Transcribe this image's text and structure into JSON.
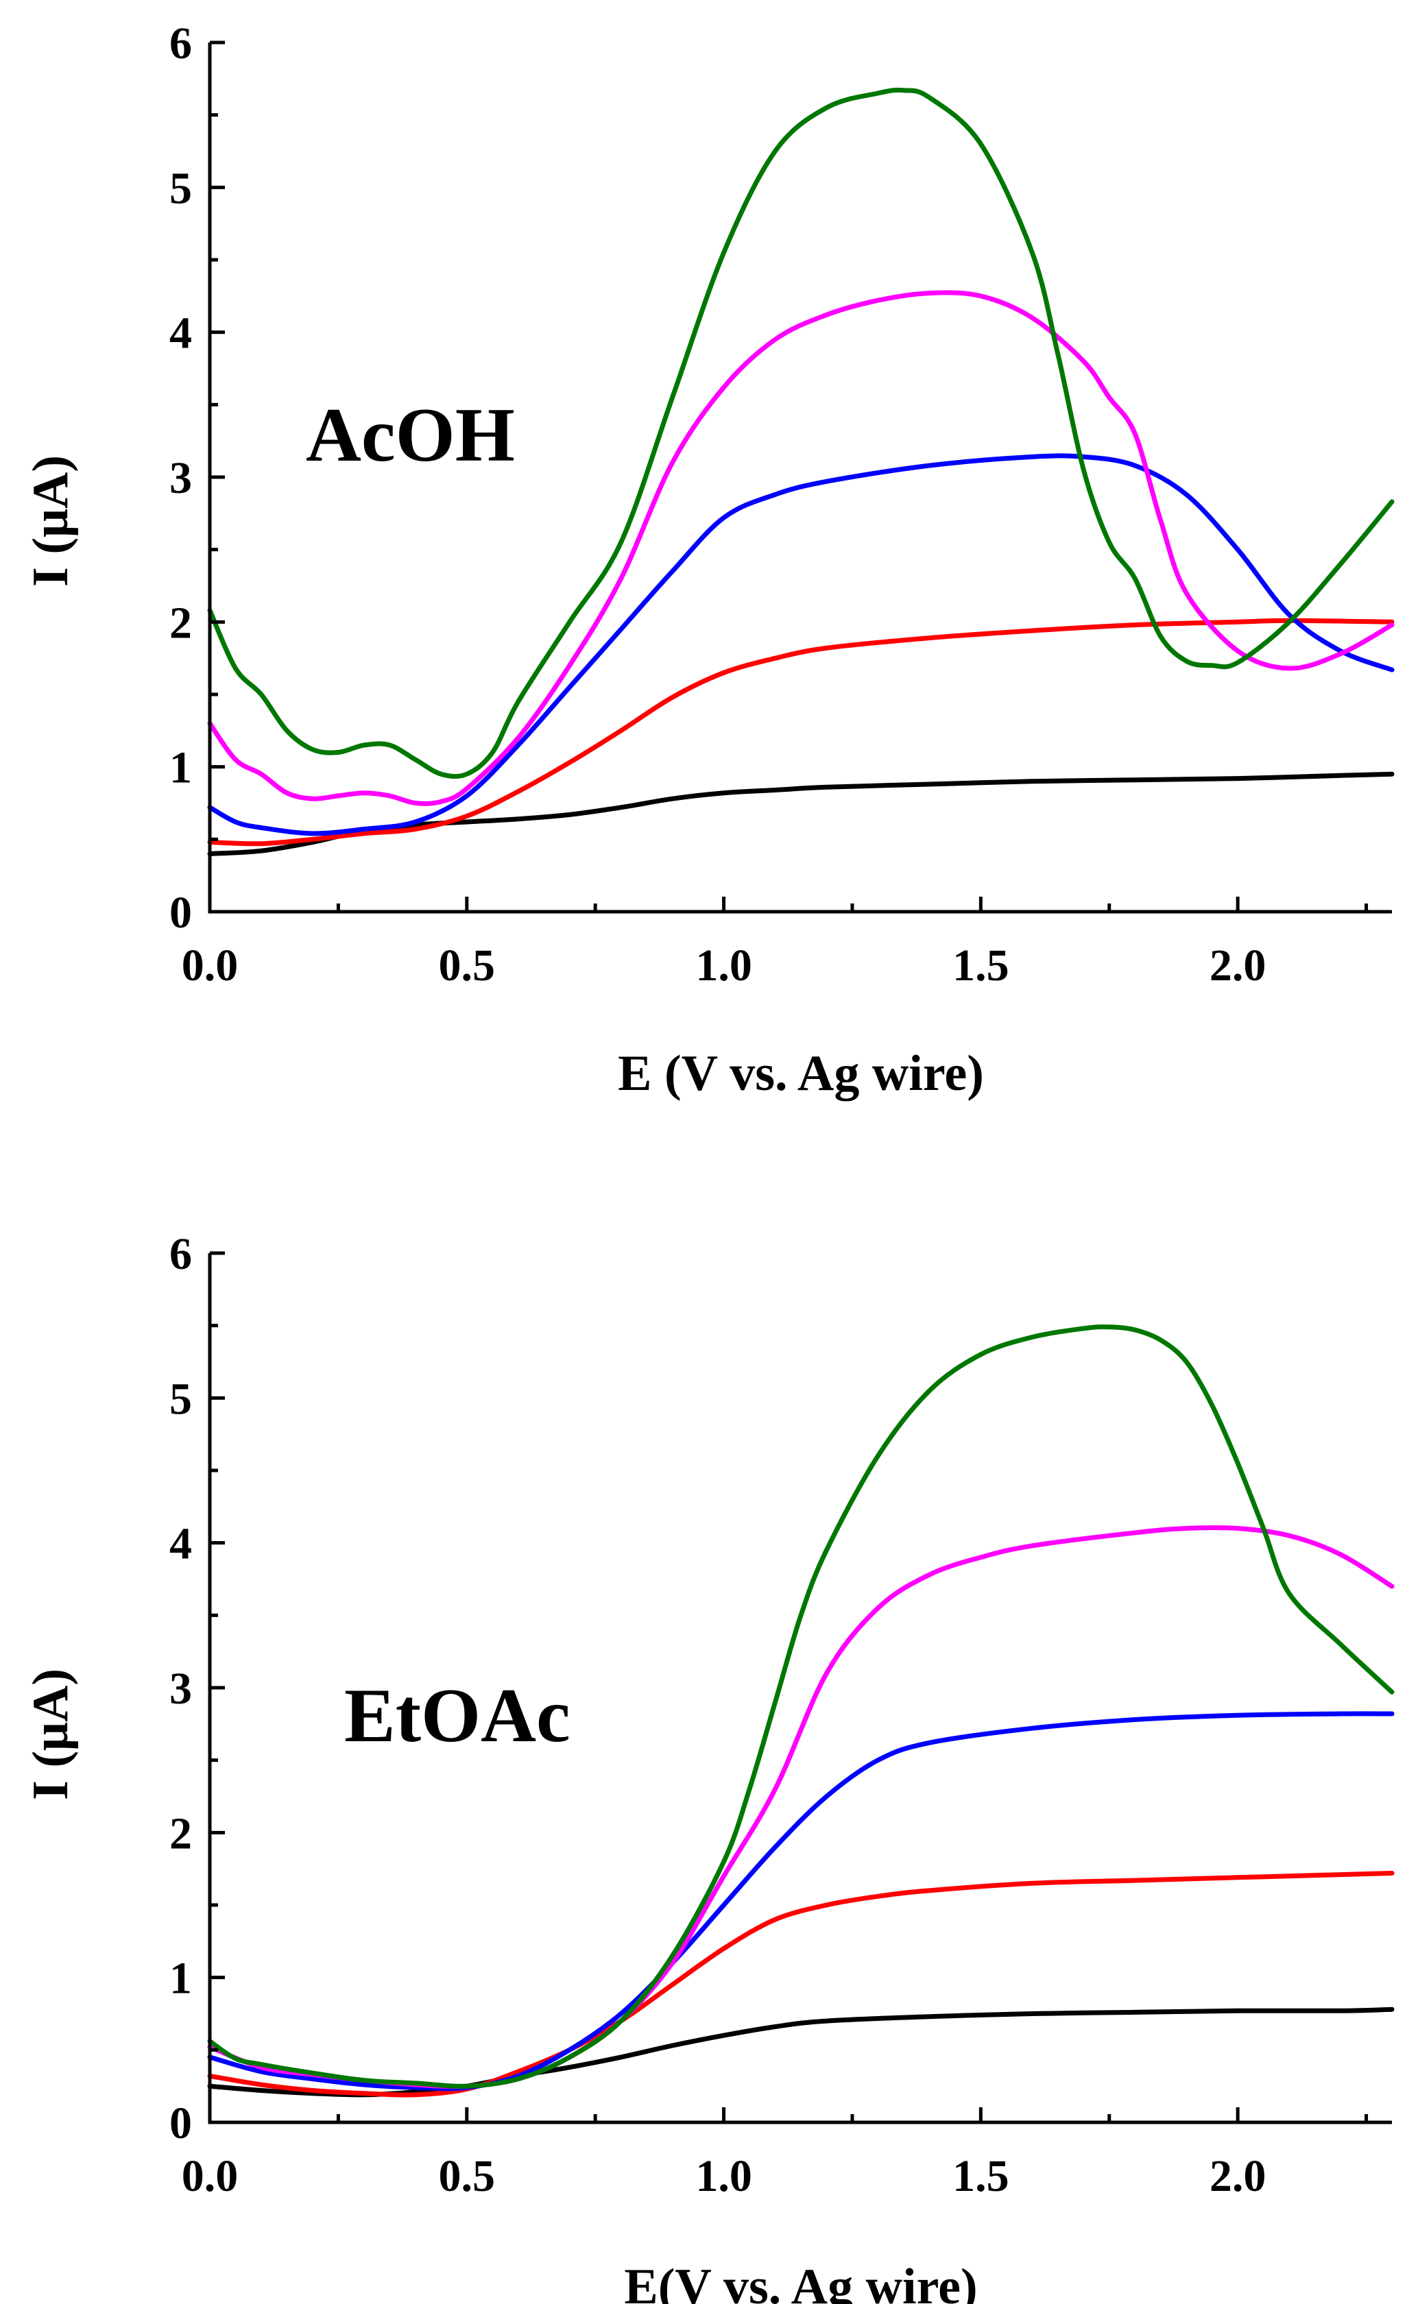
{
  "chart_data": [
    {
      "type": "line",
      "title": "AcOH",
      "xlabel": "E (V vs. Ag wire)",
      "ylabel": "I (μA)",
      "xlim": [
        0,
        2.3
      ],
      "ylim": [
        0,
        6
      ],
      "xticks": [
        "0.0",
        "0.5",
        "1.0",
        "1.5",
        "2.0"
      ],
      "xtick_values": [
        0,
        0.5,
        1.0,
        1.5,
        2.0
      ],
      "yticks": [
        "0",
        "1",
        "2",
        "3",
        "4",
        "5",
        "6"
      ],
      "ytick_values": [
        0,
        1,
        2,
        3,
        4,
        5,
        6
      ],
      "series": [
        {
          "name": "black",
          "color": "#000000",
          "x": [
            0,
            0.1,
            0.2,
            0.3,
            0.4,
            0.5,
            0.6,
            0.7,
            0.8,
            0.9,
            1.0,
            1.1,
            1.2,
            1.4,
            1.6,
            1.8,
            2.0,
            2.2,
            2.3
          ],
          "y": [
            0.4,
            0.42,
            0.48,
            0.56,
            0.6,
            0.62,
            0.64,
            0.67,
            0.72,
            0.78,
            0.82,
            0.84,
            0.86,
            0.88,
            0.9,
            0.91,
            0.92,
            0.94,
            0.95
          ]
        },
        {
          "name": "red",
          "color": "#ff0000",
          "x": [
            0,
            0.1,
            0.2,
            0.3,
            0.4,
            0.5,
            0.6,
            0.7,
            0.8,
            0.9,
            1.0,
            1.1,
            1.2,
            1.4,
            1.6,
            1.8,
            2.0,
            2.1,
            2.3
          ],
          "y": [
            0.48,
            0.47,
            0.5,
            0.54,
            0.57,
            0.66,
            0.83,
            1.03,
            1.25,
            1.48,
            1.65,
            1.75,
            1.82,
            1.89,
            1.94,
            1.98,
            2.0,
            2.01,
            2.0
          ]
        },
        {
          "name": "blue",
          "color": "#0000ff",
          "x": [
            0,
            0.05,
            0.1,
            0.2,
            0.3,
            0.4,
            0.5,
            0.6,
            0.7,
            0.8,
            0.9,
            1.0,
            1.1,
            1.2,
            1.4,
            1.6,
            1.7,
            1.8,
            1.9,
            2.0,
            2.1,
            2.2,
            2.3
          ],
          "y": [
            0.72,
            0.62,
            0.58,
            0.54,
            0.57,
            0.62,
            0.8,
            1.15,
            1.55,
            1.95,
            2.35,
            2.72,
            2.88,
            2.97,
            3.08,
            3.14,
            3.14,
            3.08,
            2.88,
            2.5,
            2.05,
            1.8,
            1.67
          ]
        },
        {
          "name": "magenta",
          "color": "#ff00ff",
          "x": [
            0,
            0.05,
            0.1,
            0.15,
            0.2,
            0.25,
            0.3,
            0.35,
            0.4,
            0.45,
            0.5,
            0.6,
            0.7,
            0.8,
            0.9,
            1.0,
            1.1,
            1.2,
            1.3,
            1.4,
            1.5,
            1.6,
            1.7,
            1.75,
            1.8,
            1.85,
            1.9,
            2.0,
            2.1,
            2.2,
            2.3
          ],
          "y": [
            1.3,
            1.05,
            0.95,
            0.82,
            0.78,
            0.8,
            0.82,
            0.8,
            0.75,
            0.76,
            0.85,
            1.2,
            1.7,
            2.3,
            3.1,
            3.62,
            3.95,
            4.12,
            4.22,
            4.27,
            4.25,
            4.1,
            3.8,
            3.55,
            3.3,
            2.7,
            2.2,
            1.8,
            1.68,
            1.78,
            1.98
          ]
        },
        {
          "name": "green",
          "color": "#007700",
          "x": [
            0,
            0.05,
            0.1,
            0.15,
            0.2,
            0.25,
            0.3,
            0.35,
            0.4,
            0.45,
            0.5,
            0.55,
            0.6,
            0.7,
            0.8,
            0.9,
            1.0,
            1.1,
            1.2,
            1.3,
            1.35,
            1.4,
            1.5,
            1.6,
            1.65,
            1.7,
            1.75,
            1.8,
            1.85,
            1.9,
            1.95,
            2.0,
            2.1,
            2.2,
            2.3
          ],
          "y": [
            2.08,
            1.68,
            1.5,
            1.25,
            1.12,
            1.1,
            1.15,
            1.15,
            1.05,
            0.95,
            0.95,
            1.1,
            1.45,
            2.0,
            2.55,
            3.55,
            4.55,
            5.25,
            5.55,
            5.65,
            5.67,
            5.62,
            5.3,
            4.55,
            3.85,
            3.05,
            2.55,
            2.3,
            1.9,
            1.73,
            1.7,
            1.72,
            2.0,
            2.4,
            2.83
          ]
        }
      ]
    },
    {
      "type": "line",
      "title": "EtOAc",
      "xlabel": "E(V vs. Ag wire)",
      "ylabel": "I (μA)",
      "xlim": [
        0,
        2.3
      ],
      "ylim": [
        0,
        6
      ],
      "xticks": [
        "0.0",
        "0.5",
        "1.0",
        "1.5",
        "2.0"
      ],
      "xtick_values": [
        0,
        0.5,
        1.0,
        1.5,
        2.0
      ],
      "yticks": [
        "0",
        "1",
        "2",
        "3",
        "4",
        "5",
        "6"
      ],
      "ytick_values": [
        0,
        1,
        2,
        3,
        4,
        5,
        6
      ],
      "series": [
        {
          "name": "black",
          "color": "#000000",
          "x": [
            0,
            0.1,
            0.2,
            0.3,
            0.4,
            0.5,
            0.6,
            0.7,
            0.8,
            0.9,
            1.0,
            1.1,
            1.2,
            1.4,
            1.6,
            1.8,
            2.0,
            2.2,
            2.3
          ],
          "y": [
            0.25,
            0.22,
            0.2,
            0.19,
            0.21,
            0.25,
            0.32,
            0.38,
            0.45,
            0.53,
            0.6,
            0.66,
            0.7,
            0.73,
            0.75,
            0.76,
            0.77,
            0.77,
            0.78
          ]
        },
        {
          "name": "red",
          "color": "#ff0000",
          "x": [
            0,
            0.1,
            0.2,
            0.3,
            0.4,
            0.5,
            0.6,
            0.7,
            0.8,
            0.9,
            1.0,
            1.1,
            1.2,
            1.3,
            1.4,
            1.6,
            1.8,
            2.0,
            2.2,
            2.3
          ],
          "y": [
            0.32,
            0.26,
            0.22,
            0.2,
            0.19,
            0.23,
            0.35,
            0.5,
            0.7,
            0.95,
            1.2,
            1.4,
            1.5,
            1.56,
            1.6,
            1.65,
            1.67,
            1.69,
            1.71,
            1.72
          ]
        },
        {
          "name": "blue",
          "color": "#0000ff",
          "x": [
            0,
            0.1,
            0.2,
            0.3,
            0.4,
            0.5,
            0.6,
            0.7,
            0.8,
            0.9,
            1.0,
            1.1,
            1.2,
            1.3,
            1.4,
            1.6,
            1.8,
            2.0,
            2.2,
            2.3
          ],
          "y": [
            0.45,
            0.35,
            0.3,
            0.26,
            0.24,
            0.24,
            0.32,
            0.5,
            0.75,
            1.1,
            1.5,
            1.9,
            2.25,
            2.5,
            2.62,
            2.72,
            2.78,
            2.81,
            2.82,
            2.82
          ]
        },
        {
          "name": "magenta",
          "color": "#ff00ff",
          "x": [
            0,
            0.1,
            0.2,
            0.3,
            0.4,
            0.5,
            0.6,
            0.7,
            0.8,
            0.9,
            1.0,
            1.1,
            1.2,
            1.3,
            1.4,
            1.5,
            1.6,
            1.8,
            1.9,
            2.0,
            2.1,
            2.2,
            2.3
          ],
          "y": [
            0.52,
            0.38,
            0.33,
            0.29,
            0.26,
            0.25,
            0.3,
            0.45,
            0.7,
            1.1,
            1.7,
            2.3,
            3.1,
            3.55,
            3.78,
            3.9,
            3.98,
            4.07,
            4.1,
            4.1,
            4.05,
            3.92,
            3.7
          ]
        },
        {
          "name": "green",
          "color": "#007700",
          "x": [
            0,
            0.05,
            0.1,
            0.2,
            0.3,
            0.4,
            0.5,
            0.6,
            0.7,
            0.8,
            0.9,
            1.0,
            1.05,
            1.1,
            1.15,
            1.2,
            1.3,
            1.4,
            1.5,
            1.6,
            1.7,
            1.75,
            1.8,
            1.85,
            1.9,
            1.95,
            2.0,
            2.05,
            2.1,
            2.2,
            2.3
          ],
          "y": [
            0.56,
            0.44,
            0.4,
            0.34,
            0.29,
            0.27,
            0.25,
            0.3,
            0.45,
            0.7,
            1.15,
            1.8,
            2.3,
            2.9,
            3.5,
            3.95,
            4.6,
            5.05,
            5.3,
            5.42,
            5.48,
            5.49,
            5.47,
            5.4,
            5.25,
            4.95,
            4.55,
            4.1,
            3.65,
            3.3,
            2.97
          ]
        }
      ]
    }
  ]
}
